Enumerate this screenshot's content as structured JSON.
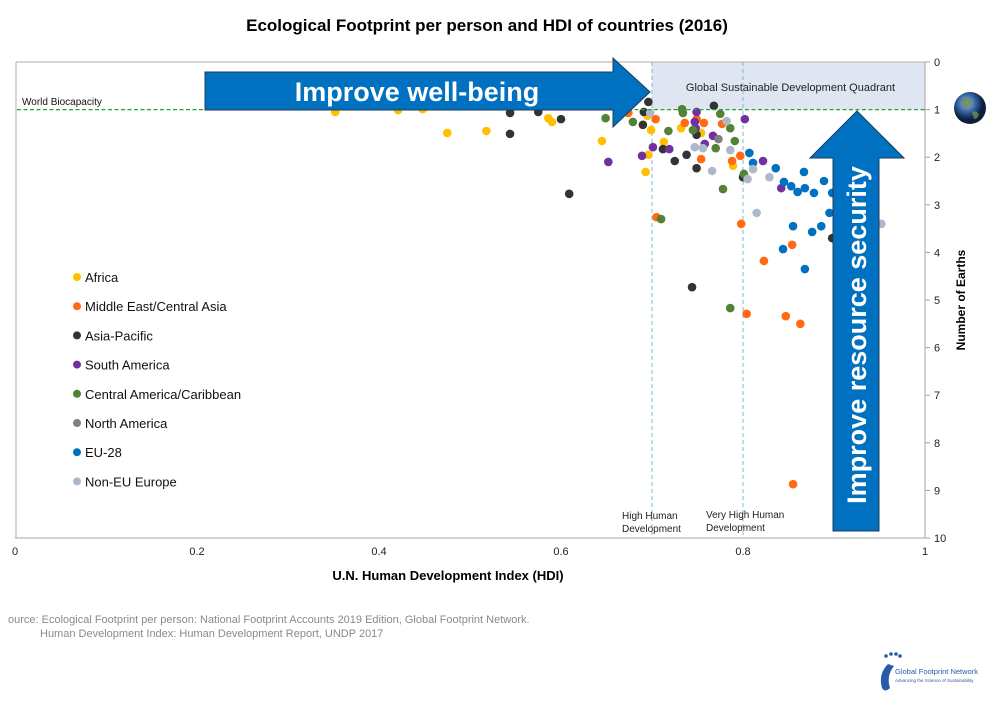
{
  "chart_data": {
    "type": "scatter",
    "title": "Ecological Footprint per person and HDI of countries (2016)",
    "xlabel": "U.N. Human Development Index (HDI)",
    "ylabel": "Number of Earths",
    "xlim": [
      0,
      1
    ],
    "ylim": [
      0,
      10
    ],
    "y_inverted": true,
    "y_axis_side": "right",
    "x_ticks": [
      "0",
      "0.2",
      "0.4",
      "0.6",
      "0.8",
      "1"
    ],
    "y_ticks": [
      "0",
      "1",
      "2",
      "3",
      "4",
      "5",
      "6",
      "7",
      "8",
      "9",
      "10"
    ],
    "grid": false,
    "legend_placement": "left",
    "reference_lines": {
      "world_biocapacity": {
        "label": "World Biocapacity",
        "y": 1,
        "color": "#22a33a"
      },
      "high_hd": {
        "label_line1": "High Human",
        "label_line2": "Development",
        "x": 0.7,
        "color": "#7fb8d8"
      },
      "very_high_hd": {
        "label_line1": "Very High Human",
        "label_line2": "Development",
        "x": 0.8,
        "color": "#7fb8d8"
      }
    },
    "quadrant": {
      "label": "Global Sustainable Development Quadrant",
      "x": [
        0.7,
        1
      ],
      "y": [
        0,
        1
      ],
      "color": "#dfe5f1"
    },
    "annotations": {
      "well_being": "Improve well-being",
      "resource_security": "Improve resource security",
      "arrow_color": "#0070c0"
    },
    "series": [
      {
        "name": "Africa",
        "color": "#ffc000",
        "points": [
          [
            0.352,
            1.05
          ],
          [
            0.421,
            1.01
          ],
          [
            0.448,
            0.99
          ],
          [
            0.475,
            1.49
          ],
          [
            0.518,
            1.45
          ],
          [
            0.586,
            1.18
          ],
          [
            0.59,
            1.26
          ],
          [
            0.645,
            1.66
          ],
          [
            0.693,
            2.31
          ],
          [
            0.695,
            1.13
          ],
          [
            0.699,
            1.43
          ],
          [
            0.713,
            1.68
          ],
          [
            0.696,
            1.95
          ],
          [
            0.732,
            1.39
          ],
          [
            0.754,
            1.49
          ],
          [
            0.789,
            2.18
          ]
        ]
      },
      {
        "name": "Middle East/Central Asia",
        "color": "#ff6a13",
        "points": [
          [
            0.674,
            1.07
          ],
          [
            0.704,
            1.2
          ],
          [
            0.736,
            1.28
          ],
          [
            0.749,
            1.2
          ],
          [
            0.757,
            1.28
          ],
          [
            0.777,
            1.3
          ],
          [
            0.754,
            2.04
          ],
          [
            0.788,
            2.08
          ],
          [
            0.797,
            1.97
          ],
          [
            0.705,
            3.26
          ],
          [
            0.798,
            3.4
          ],
          [
            0.854,
            3.84
          ],
          [
            0.823,
            4.18
          ],
          [
            0.804,
            5.29
          ],
          [
            0.847,
            5.34
          ],
          [
            0.863,
            5.5
          ],
          [
            0.855,
            8.87
          ]
        ]
      },
      {
        "name": "Asia-Pacific",
        "color": "#333333",
        "points": [
          [
            0.544,
            1.07
          ],
          [
            0.544,
            1.51
          ],
          [
            0.575,
            1.05
          ],
          [
            0.6,
            1.2
          ],
          [
            0.609,
            2.77
          ],
          [
            0.69,
            1.32
          ],
          [
            0.696,
            0.84
          ],
          [
            0.691,
            1.05
          ],
          [
            0.768,
            0.92
          ],
          [
            0.749,
            1.53
          ],
          [
            0.712,
            1.83
          ],
          [
            0.725,
            2.08
          ],
          [
            0.738,
            1.95
          ],
          [
            0.749,
            2.23
          ],
          [
            0.8,
            2.42
          ],
          [
            0.744,
            4.73
          ],
          [
            0.898,
            3.7
          ]
        ]
      },
      {
        "name": "South America",
        "color": "#7030a0",
        "points": [
          [
            0.652,
            2.1
          ],
          [
            0.749,
            1.05
          ],
          [
            0.747,
            1.26
          ],
          [
            0.748,
            1.39
          ],
          [
            0.767,
            1.55
          ],
          [
            0.758,
            1.72
          ],
          [
            0.701,
            1.79
          ],
          [
            0.719,
            1.83
          ],
          [
            0.689,
            1.97
          ],
          [
            0.802,
            1.2
          ],
          [
            0.822,
            2.08
          ],
          [
            0.842,
            2.65
          ]
        ]
      },
      {
        "name": "Central America/Caribbean",
        "color": "#548235",
        "points": [
          [
            0.649,
            1.18
          ],
          [
            0.679,
            1.26
          ],
          [
            0.733,
            0.99
          ],
          [
            0.734,
            1.07
          ],
          [
            0.718,
            1.45
          ],
          [
            0.745,
            1.43
          ],
          [
            0.775,
            1.09
          ],
          [
            0.786,
            1.39
          ],
          [
            0.791,
            1.66
          ],
          [
            0.77,
            1.81
          ],
          [
            0.801,
            2.35
          ],
          [
            0.778,
            2.67
          ],
          [
            0.71,
            3.3
          ],
          [
            0.786,
            5.17
          ]
        ]
      },
      {
        "name": "North America",
        "color": "#808080",
        "points": [
          [
            0.773,
            1.62
          ]
        ]
      },
      {
        "name": "EU-28",
        "color": "#0070c0",
        "points": [
          [
            0.807,
            1.91
          ],
          [
            0.811,
            2.12
          ],
          [
            0.836,
            2.23
          ],
          [
            0.867,
            2.31
          ],
          [
            0.845,
            2.52
          ],
          [
            0.853,
            2.61
          ],
          [
            0.86,
            2.73
          ],
          [
            0.868,
            2.65
          ],
          [
            0.878,
            2.75
          ],
          [
            0.889,
            2.5
          ],
          [
            0.898,
            2.75
          ],
          [
            0.895,
            3.17
          ],
          [
            0.855,
            3.45
          ],
          [
            0.876,
            3.57
          ],
          [
            0.886,
            3.45
          ],
          [
            0.844,
            3.93
          ],
          [
            0.868,
            4.35
          ]
        ]
      },
      {
        "name": "Non-EU Europe",
        "color": "#adb9ca",
        "points": [
          [
            0.698,
            1.07
          ],
          [
            0.782,
            1.24
          ],
          [
            0.747,
            1.79
          ],
          [
            0.756,
            1.81
          ],
          [
            0.786,
            1.85
          ],
          [
            0.766,
            2.29
          ],
          [
            0.811,
            2.25
          ],
          [
            0.805,
            2.46
          ],
          [
            0.829,
            2.42
          ],
          [
            0.815,
            3.17
          ],
          [
            0.952,
            3.4
          ]
        ]
      }
    ]
  },
  "source": {
    "line1": "ource: Ecological Footprint per person: National Footprint Accounts 2019 Edition, Global Footprint Network.",
    "line2": "Human Development Index: Human Development Report, UNDP 2017"
  },
  "logo": {
    "name": "Global Footprint Network",
    "tagline": "Advancing the Science of Sustainability",
    "color": "#2a5ba8"
  },
  "icons": {
    "earth": "earth-globe-icon"
  }
}
